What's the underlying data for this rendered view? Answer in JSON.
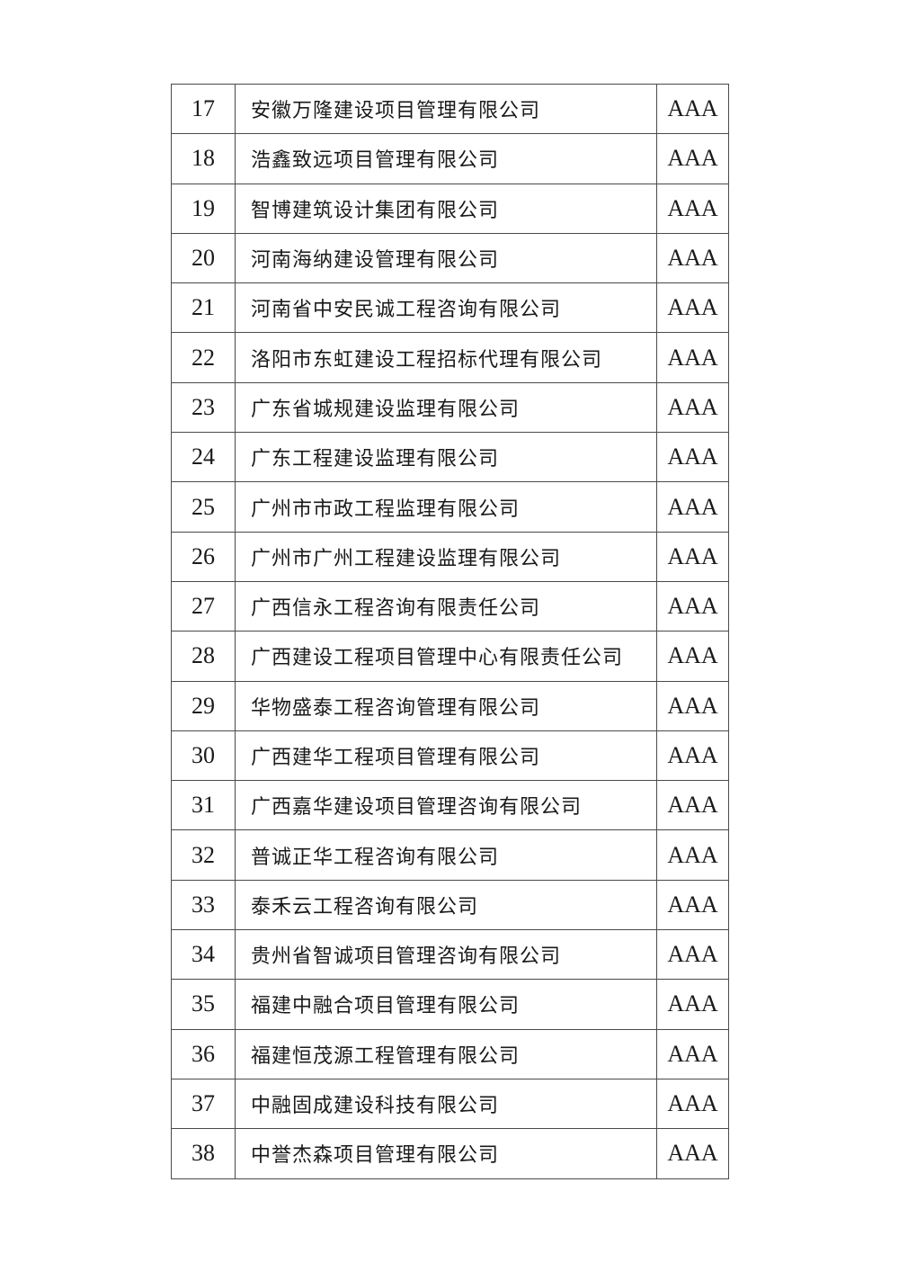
{
  "colors": {
    "background": "#ffffff",
    "table_border": "#4a4a4a",
    "text": "#1a1a1a"
  },
  "document": {
    "rating_value": "AAA",
    "rows": [
      {
        "no": "17",
        "name": "安徽万隆建设项目管理有限公司",
        "rating": "AAA"
      },
      {
        "no": "18",
        "name": "浩鑫致远项目管理有限公司",
        "rating": "AAA"
      },
      {
        "no": "19",
        "name": "智博建筑设计集团有限公司",
        "rating": "AAA"
      },
      {
        "no": "20",
        "name": "河南海纳建设管理有限公司",
        "rating": "AAA"
      },
      {
        "no": "21",
        "name": "河南省中安民诚工程咨询有限公司",
        "rating": "AAA"
      },
      {
        "no": "22",
        "name": "洛阳市东虹建设工程招标代理有限公司",
        "rating": "AAA"
      },
      {
        "no": "23",
        "name": "广东省城规建设监理有限公司",
        "rating": "AAA"
      },
      {
        "no": "24",
        "name": "广东工程建设监理有限公司",
        "rating": "AAA"
      },
      {
        "no": "25",
        "name": "广州市市政工程监理有限公司",
        "rating": "AAA"
      },
      {
        "no": "26",
        "name": "广州市广州工程建设监理有限公司",
        "rating": "AAA"
      },
      {
        "no": "27",
        "name": "广西信永工程咨询有限责任公司",
        "rating": "AAA"
      },
      {
        "no": "28",
        "name": "广西建设工程项目管理中心有限责任公司",
        "rating": "AAA"
      },
      {
        "no": "29",
        "name": "华物盛泰工程咨询管理有限公司",
        "rating": "AAA"
      },
      {
        "no": "30",
        "name": "广西建华工程项目管理有限公司",
        "rating": "AAA"
      },
      {
        "no": "31",
        "name": "广西嘉华建设项目管理咨询有限公司",
        "rating": "AAA"
      },
      {
        "no": "32",
        "name": "普诚正华工程咨询有限公司",
        "rating": "AAA"
      },
      {
        "no": "33",
        "name": "泰禾云工程咨询有限公司",
        "rating": "AAA"
      },
      {
        "no": "34",
        "name": "贵州省智诚项目管理咨询有限公司",
        "rating": "AAA"
      },
      {
        "no": "35",
        "name": "福建中融合项目管理有限公司",
        "rating": "AAA"
      },
      {
        "no": "36",
        "name": "福建恒茂源工程管理有限公司",
        "rating": "AAA"
      },
      {
        "no": "37",
        "name": "中融固成建设科技有限公司",
        "rating": "AAA"
      },
      {
        "no": "38",
        "name": "中誉杰森项目管理有限公司",
        "rating": "AAA"
      }
    ]
  }
}
